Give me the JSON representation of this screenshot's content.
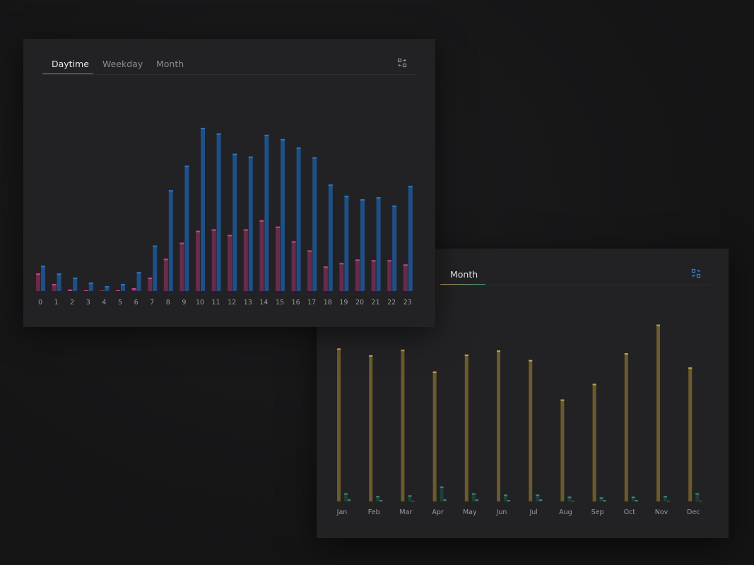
{
  "colors": {
    "blue": "#1f4f86",
    "blue_top": "#2d73c2",
    "pink": "#6a2a4c",
    "pink_top": "#c2468a",
    "gold": "#6b5a2c",
    "gold_top": "#c9a24a",
    "teal": "#1f3e37",
    "teal_top": "#3f8a74",
    "accent_icon": "#2f7fd6"
  },
  "daytime_card": {
    "tabs": [
      {
        "label": "Daytime",
        "active": true
      },
      {
        "label": "Weekday",
        "active": false
      },
      {
        "label": "Month",
        "active": false
      }
    ],
    "switch_icon": "swap-chart-icon"
  },
  "month_card": {
    "tabs": [
      {
        "label": "Month",
        "active": true
      }
    ],
    "switch_icon": "swap-chart-icon"
  },
  "chart_data": [
    {
      "type": "bar",
      "categories": [
        "0",
        "1",
        "2",
        "3",
        "4",
        "5",
        "6",
        "7",
        "8",
        "9",
        "10",
        "11",
        "12",
        "13",
        "14",
        "15",
        "16",
        "17",
        "18",
        "19",
        "20",
        "21",
        "22",
        "23"
      ],
      "series": [
        {
          "values": [
            25,
            10,
            2,
            1,
            0,
            1,
            4,
            19,
            46,
            69,
            86,
            88,
            80,
            88,
            101,
            92,
            71,
            58,
            35,
            40,
            45,
            44,
            44,
            38
          ]
        },
        {
          "values": [
            36,
            25,
            19,
            12,
            7,
            10,
            27,
            65,
            144,
            179,
            233,
            225,
            196,
            192,
            223,
            217,
            205,
            191,
            152,
            136,
            131,
            134,
            122,
            150
          ]
        }
      ],
      "ylim": [
        0,
        240
      ],
      "grid": false,
      "legend": "none"
    },
    {
      "type": "bar",
      "categories": [
        "Jan",
        "Feb",
        "Mar",
        "Apr",
        "May",
        "Jun",
        "Jul",
        "Aug",
        "Sep",
        "Oct",
        "Nov",
        "Dec"
      ],
      "series": [
        {
          "values": [
            225,
            215,
            223,
            191,
            216,
            222,
            208,
            150,
            173,
            218,
            260,
            197
          ]
        },
        {
          "values": [
            12,
            8,
            9,
            22,
            12,
            10,
            10,
            7,
            6,
            7,
            8,
            12
          ]
        },
        {
          "values": [
            3,
            2,
            1,
            3,
            3,
            2,
            3,
            1,
            2,
            2,
            1,
            1
          ]
        }
      ],
      "ylim": [
        0,
        270
      ],
      "grid": false,
      "legend": "none"
    }
  ]
}
